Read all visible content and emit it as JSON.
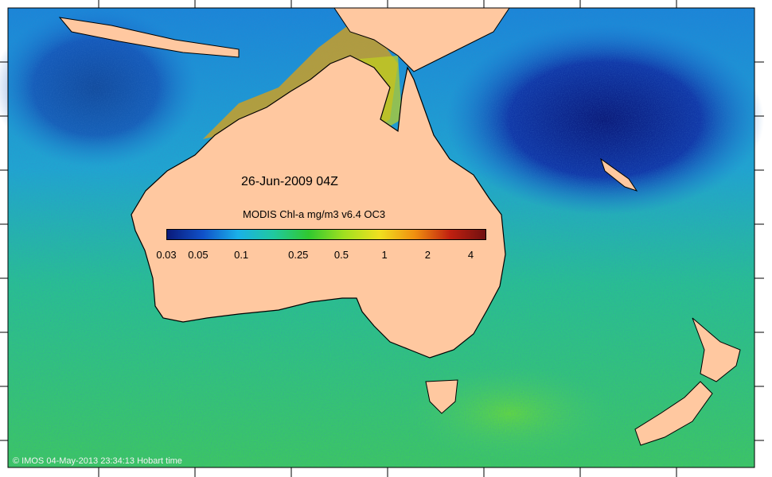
{
  "map": {
    "date_label": "26-Jun-2009 04Z",
    "colorbar": {
      "title": "MODIS Chl-a mg/m3 v6.4 OC3",
      "ticks": [
        "0.03",
        "0.05",
        "0.1",
        "0.25",
        "0.5",
        "1",
        "2",
        "4"
      ],
      "tick_values": [
        0.03,
        0.05,
        0.1,
        0.25,
        0.5,
        1,
        2,
        4
      ],
      "range": [
        0.03,
        5
      ],
      "scale": "log",
      "colors": [
        "#0a1a7a",
        "#1050c8",
        "#1ab0e8",
        "#20c8a0",
        "#30c830",
        "#a0e020",
        "#f0e020",
        "#f09010",
        "#c02010",
        "#701010"
      ]
    },
    "credit": "© IMOS 04-May-2013 23:34:13 Hobart time",
    "colors": {
      "land": "#ffc8a0",
      "ocean_low": "#0a1a7a",
      "ocean_mid": "#1ab0e8",
      "ocean_high": "#30c830",
      "coast_bloom": "#f09010"
    }
  }
}
